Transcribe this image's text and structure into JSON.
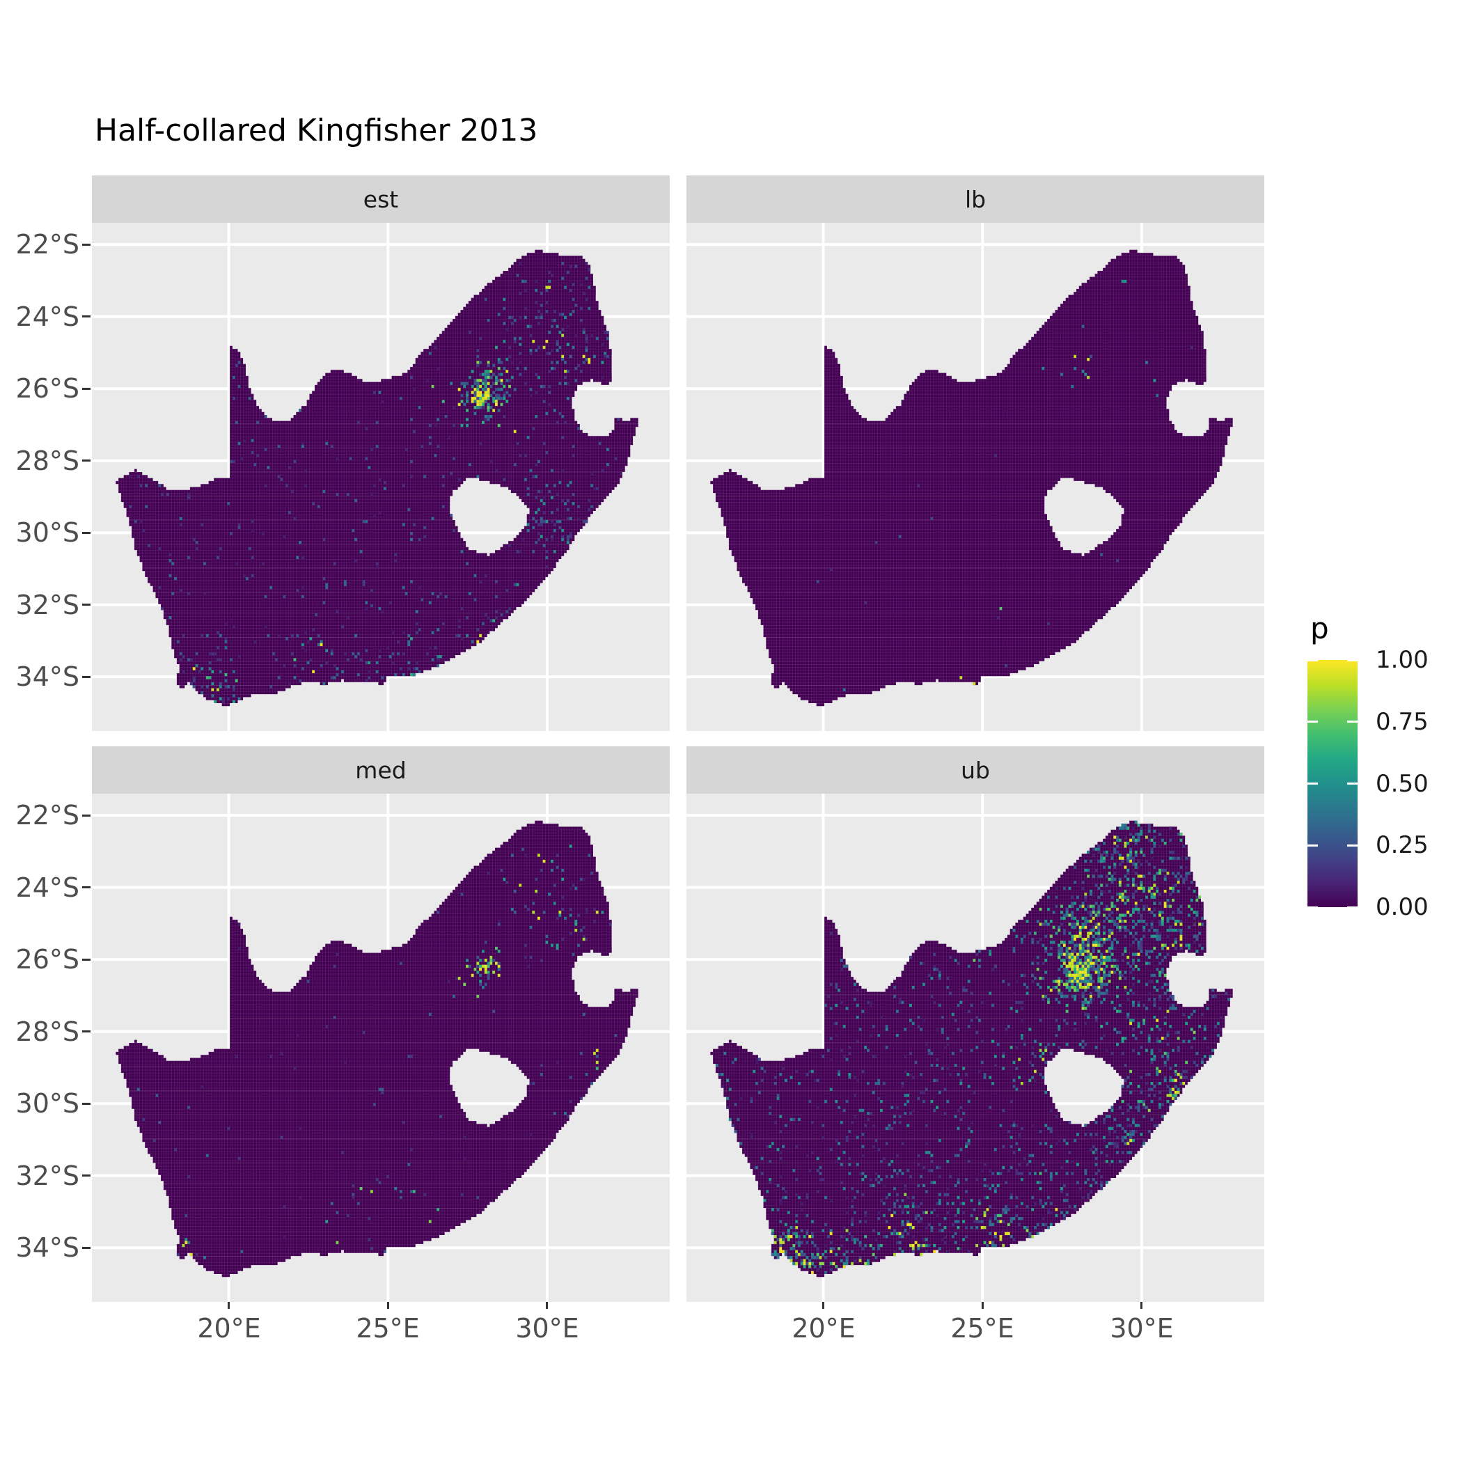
{
  "title": "Half-collared Kingfisher 2013",
  "legend": {
    "title": "p",
    "tick_labels": [
      "1.00",
      "0.75",
      "0.50",
      "0.25",
      "0.00"
    ],
    "tick_values": [
      1.0,
      0.75,
      0.5,
      0.25,
      0.0
    ]
  },
  "axes": {
    "x": {
      "labels": [
        "20°E",
        "25°E",
        "30°E"
      ],
      "lons": [
        20,
        25,
        30
      ]
    },
    "y": {
      "labels": [
        "22°S",
        "24°S",
        "26°S",
        "28°S",
        "30°S",
        "32°S",
        "34°S"
      ],
      "lats": [
        -22,
        -24,
        -26,
        -28,
        -30,
        -32,
        -34
      ]
    }
  },
  "panel": {
    "bg": "#EAEAEA",
    "strip_bg": "#D6D6D6",
    "grid_color": "#FFFFFF",
    "cell_line_alpha": 0.17
  },
  "text_colors": {
    "title": "#000000",
    "axis": "#4D4D4D",
    "strip": "#1A1A1A"
  },
  "chart_data": {
    "type": "heatmap",
    "title": "Half-collared Kingfisher 2013",
    "variable": "p",
    "legend_position": "right",
    "facets": [
      {
        "label": "est"
      },
      {
        "label": "lb"
      },
      {
        "label": "med"
      },
      {
        "label": "ub"
      }
    ],
    "lon_range": [
      15.7,
      33.85
    ],
    "lat_range": [
      -35.5,
      -21.4
    ],
    "cell_size_deg": 0.0833,
    "base_color": "#440154",
    "colorbar": {
      "title": "p",
      "ticks": [
        0,
        0.25,
        0.5,
        0.75,
        1
      ],
      "viridis_stops": [
        "#440154",
        "#482475",
        "#414487",
        "#355f8d",
        "#2a788e",
        "#21918c",
        "#22a884",
        "#44bf70",
        "#7ad151",
        "#bddf26",
        "#fde725"
      ]
    },
    "south_africa_outline": [
      [
        16.45,
        -28.58
      ],
      [
        17.1,
        -28.25
      ],
      [
        17.6,
        -28.5
      ],
      [
        18.2,
        -28.85
      ],
      [
        19.0,
        -28.75
      ],
      [
        19.6,
        -28.5
      ],
      [
        19.99,
        -28.45
      ],
      [
        19.99,
        -24.82
      ],
      [
        20.3,
        -24.9
      ],
      [
        20.5,
        -25.35
      ],
      [
        20.65,
        -25.95
      ],
      [
        20.85,
        -26.4
      ],
      [
        21.3,
        -26.85
      ],
      [
        21.9,
        -26.9
      ],
      [
        22.45,
        -26.4
      ],
      [
        22.7,
        -25.95
      ],
      [
        23.0,
        -25.6
      ],
      [
        23.45,
        -25.45
      ],
      [
        23.85,
        -25.6
      ],
      [
        24.25,
        -25.8
      ],
      [
        24.65,
        -25.82
      ],
      [
        25.05,
        -25.7
      ],
      [
        25.45,
        -25.6
      ],
      [
        25.7,
        -25.45
      ],
      [
        25.95,
        -25.1
      ],
      [
        26.2,
        -24.9
      ],
      [
        26.55,
        -24.6
      ],
      [
        26.9,
        -24.25
      ],
      [
        27.2,
        -23.9
      ],
      [
        27.6,
        -23.55
      ],
      [
        27.95,
        -23.25
      ],
      [
        28.35,
        -22.95
      ],
      [
        28.8,
        -22.65
      ],
      [
        29.25,
        -22.3
      ],
      [
        29.7,
        -22.15
      ],
      [
        30.15,
        -22.25
      ],
      [
        30.65,
        -22.3
      ],
      [
        31.1,
        -22.35
      ],
      [
        31.3,
        -22.55
      ],
      [
        31.45,
        -22.95
      ],
      [
        31.55,
        -23.5
      ],
      [
        31.75,
        -24.05
      ],
      [
        31.95,
        -24.55
      ],
      [
        32.0,
        -25.1
      ],
      [
        32.05,
        -25.65
      ],
      [
        31.95,
        -25.95
      ],
      [
        31.4,
        -25.75
      ],
      [
        30.95,
        -25.9
      ],
      [
        30.78,
        -26.35
      ],
      [
        30.9,
        -26.9
      ],
      [
        31.15,
        -27.25
      ],
      [
        31.65,
        -27.35
      ],
      [
        32.05,
        -27.25
      ],
      [
        32.13,
        -26.85
      ],
      [
        32.45,
        -26.86
      ],
      [
        32.89,
        -26.85
      ],
      [
        32.65,
        -27.6
      ],
      [
        32.5,
        -28.1
      ],
      [
        32.3,
        -28.55
      ],
      [
        31.95,
        -28.95
      ],
      [
        31.55,
        -29.35
      ],
      [
        31.05,
        -29.9
      ],
      [
        30.65,
        -30.45
      ],
      [
        30.2,
        -31.0
      ],
      [
        29.75,
        -31.5
      ],
      [
        29.2,
        -32.0
      ],
      [
        28.55,
        -32.5
      ],
      [
        27.9,
        -33.05
      ],
      [
        27.3,
        -33.35
      ],
      [
        26.6,
        -33.7
      ],
      [
        26.0,
        -33.9
      ],
      [
        25.65,
        -34.0
      ],
      [
        25.0,
        -33.95
      ],
      [
        24.85,
        -34.2
      ],
      [
        24.2,
        -34.15
      ],
      [
        23.55,
        -34.1
      ],
      [
        23.0,
        -34.2
      ],
      [
        22.55,
        -34.15
      ],
      [
        22.15,
        -34.2
      ],
      [
        21.5,
        -34.45
      ],
      [
        20.85,
        -34.45
      ],
      [
        20.35,
        -34.65
      ],
      [
        19.95,
        -34.82
      ],
      [
        19.6,
        -34.72
      ],
      [
        19.3,
        -34.6
      ],
      [
        18.95,
        -34.4
      ],
      [
        18.78,
        -34.15
      ],
      [
        18.45,
        -34.35
      ],
      [
        18.32,
        -34.05
      ],
      [
        18.47,
        -33.8
      ],
      [
        18.25,
        -33.3
      ],
      [
        18.12,
        -32.7
      ],
      [
        17.85,
        -32.0
      ],
      [
        17.4,
        -31.2
      ],
      [
        17.05,
        -30.4
      ],
      [
        16.85,
        -29.6
      ]
    ],
    "lesotho_hole": [
      [
        27.0,
        -28.9
      ],
      [
        27.55,
        -28.45
      ],
      [
        28.15,
        -28.6
      ],
      [
        28.75,
        -28.75
      ],
      [
        29.15,
        -29.05
      ],
      [
        29.45,
        -29.35
      ],
      [
        29.3,
        -29.85
      ],
      [
        28.85,
        -30.25
      ],
      [
        28.15,
        -30.62
      ],
      [
        27.55,
        -30.45
      ],
      [
        27.2,
        -29.95
      ],
      [
        26.95,
        -29.35
      ]
    ],
    "speckle_fields": {
      "est": {
        "seed": 11,
        "uniform": {
          "n": 430,
          "p": [
            0.06,
            0.4
          ]
        },
        "clusters": [
          {
            "lon": 28.0,
            "lat": -26.2,
            "sd": 0.42,
            "n": 160,
            "p": [
              0.25,
              1.0
            ],
            "hot": 0.28
          },
          {
            "lon": 28.25,
            "lat": -25.72,
            "sd": 0.3,
            "n": 40,
            "p": [
              0.2,
              0.8
            ],
            "hot": 0.1
          },
          {
            "lon": 29.9,
            "lat": -24.5,
            "sd": 1.3,
            "n": 90,
            "p": [
              0.1,
              0.5
            ],
            "hot": 0.04
          },
          {
            "lon": 31.0,
            "lat": -25.3,
            "sd": 0.9,
            "n": 55,
            "p": [
              0.1,
              0.55
            ],
            "hot": 0.06
          },
          {
            "lon": 30.9,
            "lat": -29.8,
            "sd": 0.8,
            "n": 55,
            "p": [
              0.1,
              0.55
            ],
            "hot": 0.04
          },
          {
            "lon": 29.9,
            "lat": -29.4,
            "sd": 0.5,
            "n": 30,
            "p": [
              0.1,
              0.5
            ],
            "hot": 0.03
          },
          {
            "lon": 18.7,
            "lat": -33.95,
            "sd": 0.55,
            "n": 50,
            "p": [
              0.1,
              0.6
            ],
            "hot": 0.06
          },
          {
            "lon": 19.5,
            "lat": -34.45,
            "sd": 0.5,
            "n": 35,
            "p": [
              0.1,
              0.7
            ],
            "hot": 0.1
          },
          {
            "lon": 22.9,
            "lat": -34.05,
            "sd": 0.85,
            "n": 45,
            "p": [
              0.1,
              0.7
            ],
            "hot": 0.08
          },
          {
            "lon": 25.5,
            "lat": -33.9,
            "sd": 0.6,
            "n": 40,
            "p": [
              0.1,
              0.7
            ],
            "hot": 0.08
          },
          {
            "lon": 27.85,
            "lat": -33.0,
            "sd": 0.5,
            "n": 25,
            "p": [
              0.1,
              0.6
            ],
            "hot": 0.06
          },
          {
            "lon": 26.0,
            "lat": -33.8,
            "sd": 1.3,
            "n": 40,
            "p": [
              0.08,
              0.45
            ],
            "hot": 0.04
          },
          {
            "lon": 30.0,
            "lat": -23.2,
            "sd": 0.12,
            "n": 3,
            "p": [
              0.85,
              1.0
            ],
            "hot": 0.8
          }
        ]
      },
      "lb": {
        "seed": 22,
        "uniform": {
          "n": 16,
          "p": [
            0.1,
            0.4
          ]
        },
        "clusters": [
          {
            "lon": 28.2,
            "lat": -25.2,
            "sd": 0.45,
            "n": 6,
            "p": [
              0.3,
              1.0
            ],
            "hot": 0.3
          },
          {
            "lon": 29.6,
            "lat": -23.3,
            "sd": 0.15,
            "n": 2,
            "p": [
              0.45,
              0.6
            ],
            "hot": 0
          },
          {
            "lon": 24.4,
            "lat": -34.3,
            "sd": 0.9,
            "n": 7,
            "p": [
              0.3,
              1.0
            ],
            "hot": 0.45
          },
          {
            "lon": 25.7,
            "lat": -32.2,
            "sd": 0.1,
            "n": 1,
            "p": [
              0.7,
              0.8
            ],
            "hot": 0
          },
          {
            "lon": 30.4,
            "lat": -25.45,
            "sd": 0.3,
            "n": 3,
            "p": [
              0.3,
              0.6
            ],
            "hot": 0
          },
          {
            "lon": 27.6,
            "lat": -25.5,
            "sd": 0.5,
            "n": 4,
            "p": [
              0.3,
              0.6
            ],
            "hot": 0
          }
        ]
      },
      "med": {
        "seed": 33,
        "uniform": {
          "n": 90,
          "p": [
            0.06,
            0.35
          ]
        },
        "clusters": [
          {
            "lon": 28.0,
            "lat": -26.15,
            "sd": 0.35,
            "n": 55,
            "p": [
              0.2,
              1.0
            ],
            "hot": 0.22
          },
          {
            "lon": 29.9,
            "lat": -24.4,
            "sd": 1.2,
            "n": 50,
            "p": [
              0.1,
              0.6
            ],
            "hot": 0.1
          },
          {
            "lon": 31.2,
            "lat": -24.9,
            "sd": 0.8,
            "n": 30,
            "p": [
              0.1,
              0.6
            ],
            "hot": 0.09
          },
          {
            "lon": 29.8,
            "lat": -23.15,
            "sd": 0.12,
            "n": 2,
            "p": [
              0.9,
              1.0
            ],
            "hot": 1
          },
          {
            "lon": 24.3,
            "lat": -34.25,
            "sd": 1.2,
            "n": 32,
            "p": [
              0.15,
              0.85
            ],
            "hot": 0.15
          },
          {
            "lon": 30.9,
            "lat": -29.9,
            "sd": 0.5,
            "n": 12,
            "p": [
              0.1,
              0.5
            ],
            "hot": 0.05
          },
          {
            "lon": 18.7,
            "lat": -33.95,
            "sd": 0.45,
            "n": 12,
            "p": [
              0.1,
              0.55
            ],
            "hot": 0.06
          },
          {
            "lon": 31.4,
            "lat": -28.7,
            "sd": 0.3,
            "n": 6,
            "p": [
              0.2,
              0.9
            ],
            "hot": 0.25
          }
        ]
      },
      "ub": {
        "seed": 44,
        "uniform": {
          "n": 1050,
          "p": [
            0.06,
            0.55
          ]
        },
        "clusters": [
          {
            "lon": 28.05,
            "lat": -26.25,
            "sd": 0.55,
            "n": 430,
            "p": [
              0.3,
              1.0
            ],
            "hot": 0.3
          },
          {
            "lon": 28.35,
            "lat": -25.55,
            "sd": 0.95,
            "n": 220,
            "p": [
              0.2,
              0.9
            ],
            "hot": 0.15
          },
          {
            "lon": 29.9,
            "lat": -24.15,
            "sd": 1.5,
            "n": 340,
            "p": [
              0.15,
              0.8
            ],
            "hot": 0.1
          },
          {
            "lon": 29.6,
            "lat": -22.8,
            "sd": 0.9,
            "n": 130,
            "p": [
              0.15,
              0.8
            ],
            "hot": 0.12
          },
          {
            "lon": 31.1,
            "lat": -25.4,
            "sd": 1.0,
            "n": 150,
            "p": [
              0.15,
              0.8
            ],
            "hot": 0.1
          },
          {
            "lon": 30.9,
            "lat": -29.6,
            "sd": 0.9,
            "n": 140,
            "p": [
              0.15,
              0.85
            ],
            "hot": 0.12
          },
          {
            "lon": 29.5,
            "lat": -30.9,
            "sd": 0.8,
            "n": 90,
            "p": [
              0.1,
              0.6
            ],
            "hot": 0.07
          },
          {
            "lon": 30.3,
            "lat": -27.5,
            "sd": 1.2,
            "n": 90,
            "p": [
              0.12,
              0.7
            ],
            "hot": 0.08
          },
          {
            "lon": 18.6,
            "lat": -33.9,
            "sd": 0.55,
            "n": 85,
            "p": [
              0.2,
              1.0
            ],
            "hot": 0.2
          },
          {
            "lon": 19.4,
            "lat": -34.45,
            "sd": 0.6,
            "n": 70,
            "p": [
              0.2,
              1.0
            ],
            "hot": 0.2
          },
          {
            "lon": 20.8,
            "lat": -34.35,
            "sd": 0.7,
            "n": 65,
            "p": [
              0.15,
              0.9
            ],
            "hot": 0.15
          },
          {
            "lon": 23.0,
            "lat": -34.05,
            "sd": 0.95,
            "n": 100,
            "p": [
              0.15,
              0.9
            ],
            "hot": 0.15
          },
          {
            "lon": 25.5,
            "lat": -33.85,
            "sd": 0.75,
            "n": 80,
            "p": [
              0.15,
              0.9
            ],
            "hot": 0.12
          },
          {
            "lon": 27.6,
            "lat": -33.1,
            "sd": 0.85,
            "n": 75,
            "p": [
              0.1,
              0.7
            ],
            "hot": 0.08
          },
          {
            "lon": 26.9,
            "lat": -28.8,
            "sd": 0.45,
            "n": 30,
            "p": [
              0.2,
              0.9
            ],
            "hot": 0.2
          },
          {
            "lon": 25.6,
            "lat": -33.0,
            "sd": 1.3,
            "n": 70,
            "p": [
              0.1,
              0.6
            ],
            "hot": 0.05
          },
          {
            "lon": 22.5,
            "lat": -33.4,
            "sd": 1.4,
            "n": 70,
            "p": [
              0.1,
              0.6
            ],
            "hot": 0.05
          }
        ]
      }
    }
  }
}
